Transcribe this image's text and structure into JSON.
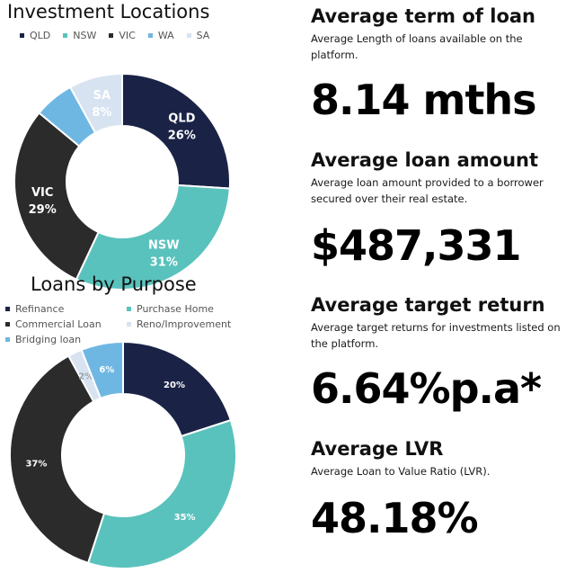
{
  "colors": {
    "navy": "#1a2346",
    "teal": "#5ac2bd",
    "charcoal": "#2b2b2b",
    "sky": "#6fb7e3",
    "pale": "#d8e3f1",
    "white": "#ffffff"
  },
  "chart_data": [
    {
      "type": "pie",
      "title": "Investment Locations",
      "legend_position": "top",
      "categories": [
        "QLD",
        "NSW",
        "VIC",
        "WA",
        "SA"
      ],
      "values": [
        26,
        31,
        29,
        6,
        8
      ],
      "slice_labels": [
        {
          "name": "QLD",
          "value": "26%"
        },
        {
          "name": "NSW",
          "value": "31%"
        },
        {
          "name": "VIC",
          "value": "29%"
        },
        {
          "name": "WA",
          "value": ""
        },
        {
          "name": "SA",
          "value": "8%"
        }
      ],
      "slice_colors": [
        "#1a2346",
        "#5ac2bd",
        "#2b2b2b",
        "#6fb7e3",
        "#d8e3f1"
      ],
      "label_colors": [
        "#ffffff",
        "#ffffff",
        "#ffffff",
        "#ffffff",
        "#ffffff"
      ]
    },
    {
      "type": "pie",
      "title": "Loans by Purpose",
      "legend_position": "top",
      "categories": [
        "Refinance",
        "Purchase Home",
        "Commercial Loan",
        "Reno/Improvement",
        "Bridging loan"
      ],
      "values": [
        20,
        35,
        37,
        2,
        6
      ],
      "slice_labels": [
        {
          "name": "Refinance",
          "value": "20%"
        },
        {
          "name": "Purchase Home",
          "value": "35%"
        },
        {
          "name": "Commercial Loan",
          "value": "37%"
        },
        {
          "name": "Reno/Improvement",
          "value": "2%"
        },
        {
          "name": "Bridging loan",
          "value": "6%"
        }
      ],
      "slice_colors": [
        "#1a2346",
        "#5ac2bd",
        "#2b2b2b",
        "#d8e3f1",
        "#6fb7e3"
      ],
      "label_colors": [
        "#ffffff",
        "#ffffff",
        "#ffffff",
        "#9aa4b0",
        "#ffffff"
      ]
    }
  ],
  "stats": {
    "term": {
      "heading": "Average term of loan",
      "desc": "Average Length of loans available on the platform.",
      "value": "8.14 mths"
    },
    "amount": {
      "heading": "Average loan amount",
      "desc": "Average loan amount provided to a borrower secured over their real estate.",
      "value": "$487,331"
    },
    "return": {
      "heading": "Average target return",
      "desc": "Average target returns for investments listed on the platform.",
      "value": "6.64%p.a*"
    },
    "lvr": {
      "heading": "Average LVR",
      "desc": "Average Loan to Value Ratio (LVR).",
      "value": "48.18%"
    }
  }
}
